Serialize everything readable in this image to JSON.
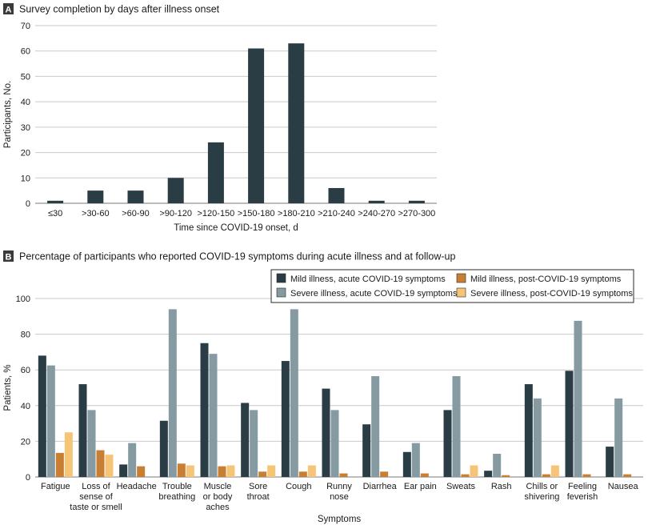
{
  "colors": {
    "mild_acute": "#2a3c44",
    "severe_acute": "#869aa2",
    "mild_post": "#c87f33",
    "severe_post": "#f6c477",
    "panel_a_bar": "#2a3c44",
    "grid": "#c9c9c9",
    "axis": "#555555"
  },
  "chart_data": [
    {
      "type": "bar",
      "panel_letter": "A",
      "title": "Survey completion by days after illness onset",
      "xlabel": "Time since COVID-19 onset, d",
      "ylabel": "Participants, No.",
      "ylim": [
        0,
        70
      ],
      "yticks": [
        0,
        10,
        20,
        30,
        40,
        50,
        60,
        70
      ],
      "grid": true,
      "categories": [
        "≤30",
        ">30-60",
        ">60-90",
        ">90-120",
        ">120-150",
        ">150-180",
        ">180-210",
        ">210-240",
        ">240-270",
        ">270-300"
      ],
      "values": [
        1,
        5,
        5,
        10,
        24,
        61,
        63,
        6,
        1,
        1
      ]
    },
    {
      "type": "bar",
      "panel_letter": "B",
      "title": "Percentage of participants who reported COVID-19 symptoms during acute illness and at follow-up",
      "xlabel": "Symptoms",
      "ylabel": "Patients, %",
      "ylim": [
        0,
        100
      ],
      "yticks": [
        0,
        20,
        40,
        60,
        80,
        100
      ],
      "grid": true,
      "legend_position": "top-right",
      "categories": [
        [
          "Fatigue"
        ],
        [
          "Loss of",
          "sense of",
          "taste or smell"
        ],
        [
          "Headache"
        ],
        [
          "Trouble",
          "breathing"
        ],
        [
          "Muscle",
          "or body",
          "aches"
        ],
        [
          "Sore",
          "throat"
        ],
        [
          "Cough"
        ],
        [
          "Runny",
          "nose"
        ],
        [
          "Diarrhea"
        ],
        [
          "Ear pain"
        ],
        [
          "Sweats"
        ],
        [
          "Rash"
        ],
        [
          "Chills or",
          "shivering"
        ],
        [
          "Feeling",
          "feverish"
        ],
        [
          "Nausea"
        ]
      ],
      "series": [
        {
          "name": "Mild illness, acute COVID-19 symptoms",
          "color_key": "mild_acute",
          "values": [
            68,
            52,
            7,
            31.5,
            75,
            41.5,
            65,
            49.5,
            29.5,
            14,
            37.5,
            3.5,
            52,
            59.5,
            17
          ]
        },
        {
          "name": "Severe illness, acute COVID-19 symptoms",
          "color_key": "severe_acute",
          "values": [
            62.5,
            37.5,
            19,
            94,
            69,
            37.5,
            94,
            37.5,
            56.5,
            19,
            56.5,
            13,
            44,
            87.5,
            44
          ]
        },
        {
          "name": "Mild illness, post-COVID-19 symptoms",
          "color_key": "mild_post",
          "values": [
            13.5,
            15,
            6,
            7.5,
            6,
            3,
            3,
            2,
            3,
            2,
            1.5,
            1,
            1.5,
            1.5,
            1.5
          ]
        },
        {
          "name": "Severe illness, post-COVID-19 symptoms",
          "color_key": "severe_post",
          "values": [
            25,
            12.5,
            0,
            6.5,
            6.5,
            6.5,
            6.5,
            0,
            0,
            0,
            6.5,
            0,
            6.5,
            0,
            0
          ]
        }
      ]
    }
  ]
}
